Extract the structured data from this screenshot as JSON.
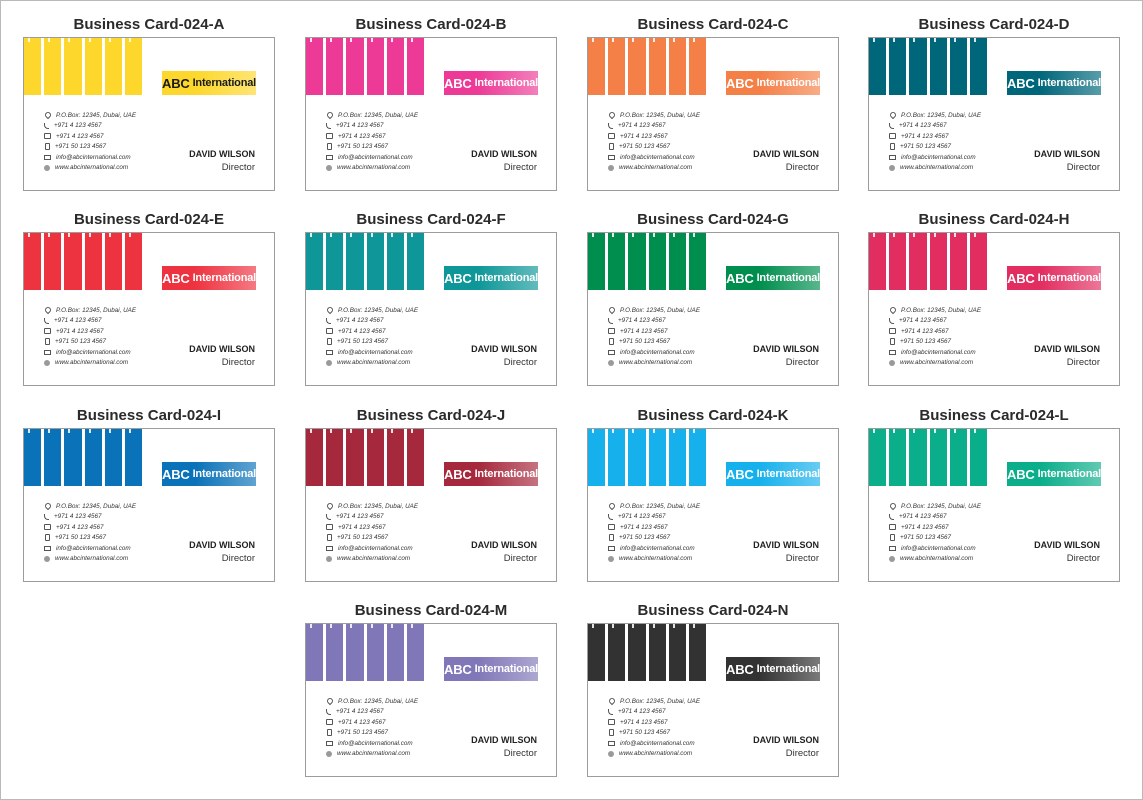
{
  "card": {
    "brand_main": "ABC",
    "brand_rest": "International",
    "contacts": [
      {
        "icon": "location-pin-icon",
        "text": "P.O.Box: 12345, Dubai, UAE"
      },
      {
        "icon": "phone-icon",
        "text": "+971 4 123 4567"
      },
      {
        "icon": "fax-icon",
        "text": "+971 4 123 4567"
      },
      {
        "icon": "mobile-icon",
        "text": "+971 50 123 4567"
      },
      {
        "icon": "mail-icon",
        "text": "info@abcinternational.com"
      },
      {
        "icon": "globe-icon",
        "text": "www.abcinternational.com"
      }
    ],
    "name": "DAVID WILSON",
    "role": "Director"
  },
  "variants": [
    {
      "title": "Business Card-024-A",
      "color": "#fdd72b",
      "logo_text": "#1a1a1a"
    },
    {
      "title": "Business Card-024-B",
      "color": "#ec3a96",
      "logo_text": "#ffffff"
    },
    {
      "title": "Business Card-024-C",
      "color": "#f47f47",
      "logo_text": "#ffffff"
    },
    {
      "title": "Business Card-024-D",
      "color": "#00677a",
      "logo_text": "#ffffff"
    },
    {
      "title": "Business Card-024-E",
      "color": "#ee3340",
      "logo_text": "#ffffff"
    },
    {
      "title": "Business Card-024-F",
      "color": "#0e9698",
      "logo_text": "#ffffff"
    },
    {
      "title": "Business Card-024-G",
      "color": "#008e4e",
      "logo_text": "#ffffff"
    },
    {
      "title": "Business Card-024-H",
      "color": "#e22d60",
      "logo_text": "#ffffff"
    },
    {
      "title": "Business Card-024-I",
      "color": "#0a72b8",
      "logo_text": "#ffffff"
    },
    {
      "title": "Business Card-024-J",
      "color": "#a5283c",
      "logo_text": "#ffffff"
    },
    {
      "title": "Business Card-024-K",
      "color": "#16b1ec",
      "logo_text": "#ffffff"
    },
    {
      "title": "Business Card-024-L",
      "color": "#0aae8a",
      "logo_text": "#ffffff"
    },
    {
      "title": "Business Card-024-M",
      "color": "#8077b8",
      "logo_text": "#ffffff"
    },
    {
      "title": "Business Card-024-N",
      "color": "#323232",
      "logo_text": "#ffffff"
    }
  ]
}
